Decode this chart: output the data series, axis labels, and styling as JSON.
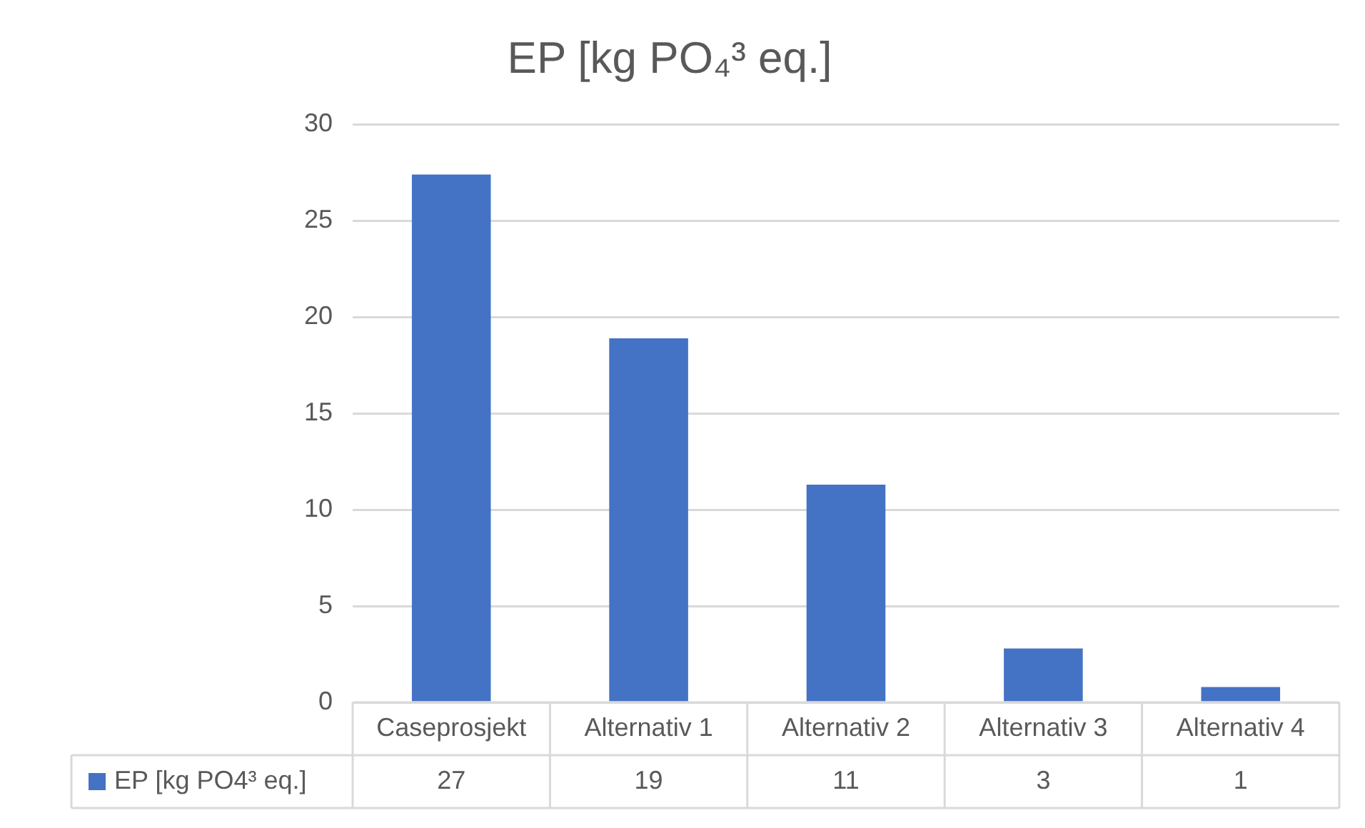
{
  "chart_data": {
    "type": "bar",
    "title": "EP [kg PO₄³ eq.]",
    "categories": [
      "Caseprosjekt",
      "Alternativ 1",
      "Alternativ 2",
      "Alternativ 3",
      "Alternativ 4"
    ],
    "series": [
      {
        "name": "EP [kg PO4³ eq.]",
        "color": "#4472c4",
        "values": [
          27.4,
          18.9,
          11.3,
          2.8,
          0.8
        ],
        "value_labels": [
          "27",
          "19",
          "11",
          "3",
          "1"
        ]
      }
    ],
    "ylim": [
      0,
      30
    ],
    "yticks": [
      0,
      5,
      10,
      15,
      20,
      25,
      30
    ],
    "grid": "y"
  }
}
